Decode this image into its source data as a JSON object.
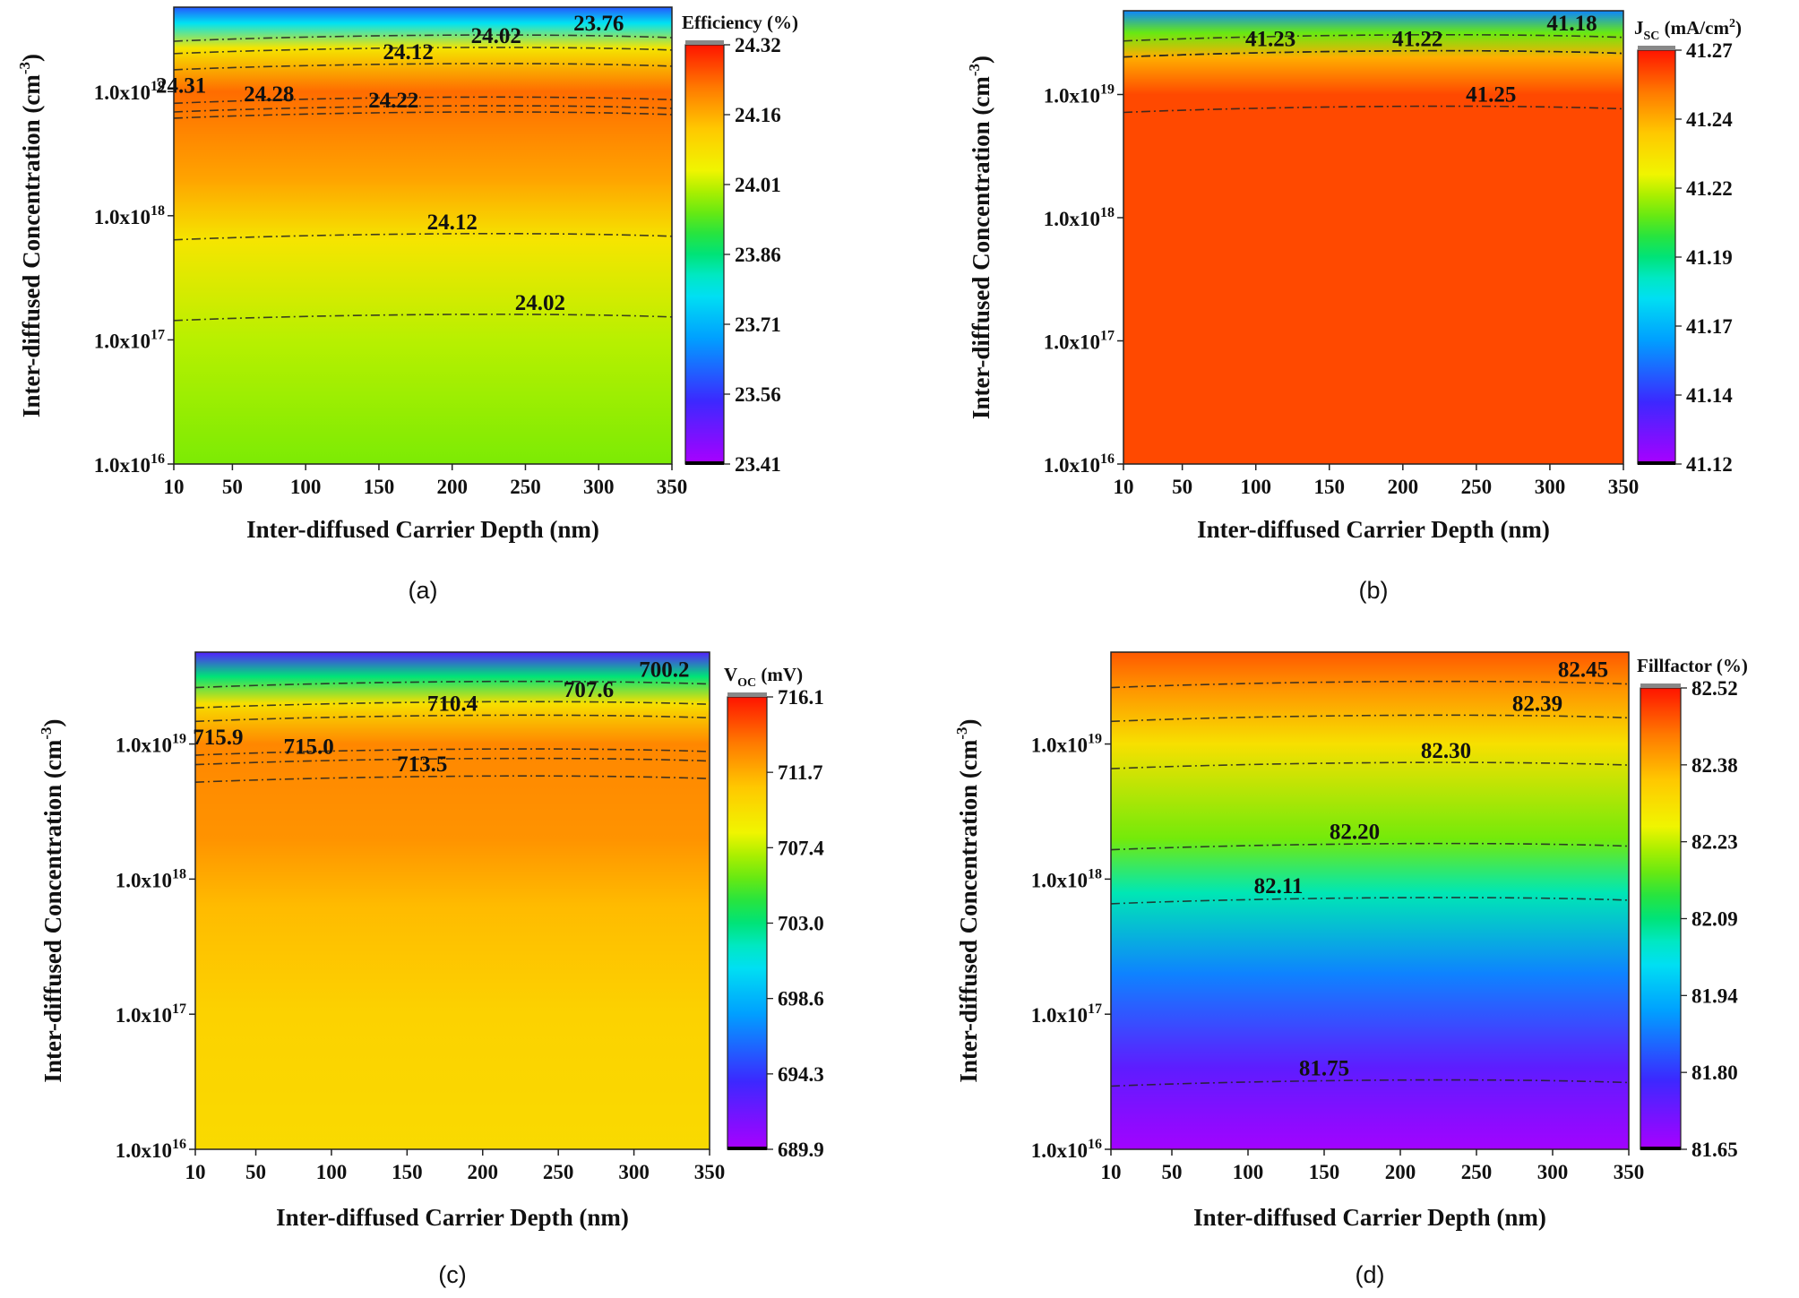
{
  "chart_data": [
    {
      "type": "heatmap",
      "panel_label": "(a)",
      "xlabel": "Inter-diffused Carrier Depth (nm)",
      "ylabel": "Inter-diffused Concentration (cm-3)",
      "x_ticks": [
        10,
        50,
        100,
        150,
        200,
        250,
        300,
        350
      ],
      "y_ticks": [
        "1.0x1016",
        "1.0x1017",
        "1.0x1018",
        "1.0x1019"
      ],
      "colorbar": {
        "title": "Efficiency (%)",
        "ticks": [
          "24.32",
          "24.16",
          "24.01",
          "23.86",
          "23.71",
          "23.56",
          "23.41"
        ],
        "min": 23.41,
        "max": 24.32
      },
      "contour_labels": [
        {
          "value": "23.76",
          "x": 300,
          "y": 19.55
        },
        {
          "value": "24.02",
          "x": 230,
          "y": 19.45
        },
        {
          "value": "24.12",
          "x": 170,
          "y": 19.32
        },
        {
          "value": "24.31",
          "x": 15,
          "y": 19.05
        },
        {
          "value": "24.28",
          "x": 75,
          "y": 18.98
        },
        {
          "value": "24.22",
          "x": 160,
          "y": 18.93
        },
        {
          "value": "24.12",
          "x": 200,
          "y": 17.95
        },
        {
          "value": "24.02",
          "x": 260,
          "y": 17.3
        }
      ],
      "color_stops": [
        {
          "y": 16.0,
          "v": 23.97
        },
        {
          "y": 17.0,
          "v": 24.01
        },
        {
          "y": 17.8,
          "v": 24.08
        },
        {
          "y": 18.3,
          "v": 24.18
        },
        {
          "y": 19.0,
          "v": 24.24
        },
        {
          "y": 19.35,
          "v": 24.08
        },
        {
          "y": 19.55,
          "v": 23.78
        },
        {
          "y": 19.68,
          "v": 23.6
        }
      ]
    },
    {
      "type": "heatmap",
      "panel_label": "(b)",
      "xlabel": "Inter-diffused Carrier Depth (nm)",
      "ylabel": "Inter-diffused Concentration (cm-3)",
      "x_ticks": [
        10,
        50,
        100,
        150,
        200,
        250,
        300,
        350
      ],
      "y_ticks": [
        "1.0x1016",
        "1.0x1017",
        "1.0x1018",
        "1.0x1019"
      ],
      "colorbar": {
        "title": "JSC (mA/cm2)",
        "ticks": [
          "41.27",
          "41.24",
          "41.22",
          "41.19",
          "41.17",
          "41.14",
          "41.12"
        ],
        "min": 41.12,
        "max": 41.27
      },
      "contour_labels": [
        {
          "value": "41.18",
          "x": 315,
          "y": 19.58
        },
        {
          "value": "41.23",
          "x": 110,
          "y": 19.45
        },
        {
          "value": "41.22",
          "x": 210,
          "y": 19.45
        },
        {
          "value": "41.25",
          "x": 260,
          "y": 19.0
        }
      ],
      "color_stops": [
        {
          "y": 16.0,
          "v": 41.262
        },
        {
          "y": 19.0,
          "v": 41.262
        },
        {
          "y": 19.3,
          "v": 41.245
        },
        {
          "y": 19.5,
          "v": 41.21
        },
        {
          "y": 19.68,
          "v": 41.16
        }
      ]
    },
    {
      "type": "heatmap",
      "panel_label": "(c)",
      "xlabel": "Inter-diffused Carrier Depth (nm)",
      "ylabel": "Inter-diffused Concentration (cm-3)",
      "x_ticks": [
        10,
        50,
        100,
        150,
        200,
        250,
        300,
        350
      ],
      "y_ticks": [
        "1.0x1016",
        "1.0x1017",
        "1.0x1018",
        "1.0x1019"
      ],
      "colorbar": {
        "title": "VOC (mV)",
        "ticks": [
          "716.1",
          "711.7",
          "707.4",
          "703.0",
          "698.6",
          "694.3",
          "689.9"
        ],
        "min": 689.9,
        "max": 716.1
      },
      "contour_labels": [
        {
          "value": "700.2",
          "x": 320,
          "y": 19.55
        },
        {
          "value": "707.6",
          "x": 270,
          "y": 19.4
        },
        {
          "value": "710.4",
          "x": 180,
          "y": 19.3
        },
        {
          "value": "715.9",
          "x": 25,
          "y": 19.05
        },
        {
          "value": "715.0",
          "x": 85,
          "y": 18.98
        },
        {
          "value": "713.5",
          "x": 160,
          "y": 18.85
        }
      ],
      "color_stops": [
        {
          "y": 16.0,
          "v": 709.8
        },
        {
          "y": 17.0,
          "v": 710.3
        },
        {
          "y": 17.8,
          "v": 711.3
        },
        {
          "y": 18.3,
          "v": 712.6
        },
        {
          "y": 19.0,
          "v": 713.0
        },
        {
          "y": 19.3,
          "v": 709.5
        },
        {
          "y": 19.5,
          "v": 703.0
        },
        {
          "y": 19.68,
          "v": 693.0
        }
      ]
    },
    {
      "type": "heatmap",
      "panel_label": "(d)",
      "xlabel": "Inter-diffused Carrier Depth (nm)",
      "ylabel": "Inter-diffused Concentration (cm-3)",
      "x_ticks": [
        10,
        50,
        100,
        150,
        200,
        250,
        300,
        350
      ],
      "y_ticks": [
        "1.0x1016",
        "1.0x1017",
        "1.0x1018",
        "1.0x1019"
      ],
      "colorbar": {
        "title": "Fillfactor (%)",
        "ticks": [
          "82.52",
          "82.38",
          "82.23",
          "82.09",
          "81.94",
          "81.80",
          "81.65"
        ],
        "min": 81.65,
        "max": 82.52
      },
      "contour_labels": [
        {
          "value": "82.45",
          "x": 320,
          "y": 19.55
        },
        {
          "value": "82.39",
          "x": 290,
          "y": 19.3
        },
        {
          "value": "82.30",
          "x": 230,
          "y": 18.95
        },
        {
          "value": "82.20",
          "x": 170,
          "y": 18.35
        },
        {
          "value": "82.11",
          "x": 120,
          "y": 17.95
        },
        {
          "value": "81.75",
          "x": 150,
          "y": 16.6
        }
      ],
      "color_stops": [
        {
          "y": 16.0,
          "v": 81.66
        },
        {
          "y": 16.6,
          "v": 81.74
        },
        {
          "y": 17.3,
          "v": 81.88
        },
        {
          "y": 17.9,
          "v": 82.05
        },
        {
          "y": 18.3,
          "v": 82.18
        },
        {
          "y": 19.0,
          "v": 82.3
        },
        {
          "y": 19.4,
          "v": 82.4
        },
        {
          "y": 19.68,
          "v": 82.46
        }
      ]
    }
  ]
}
